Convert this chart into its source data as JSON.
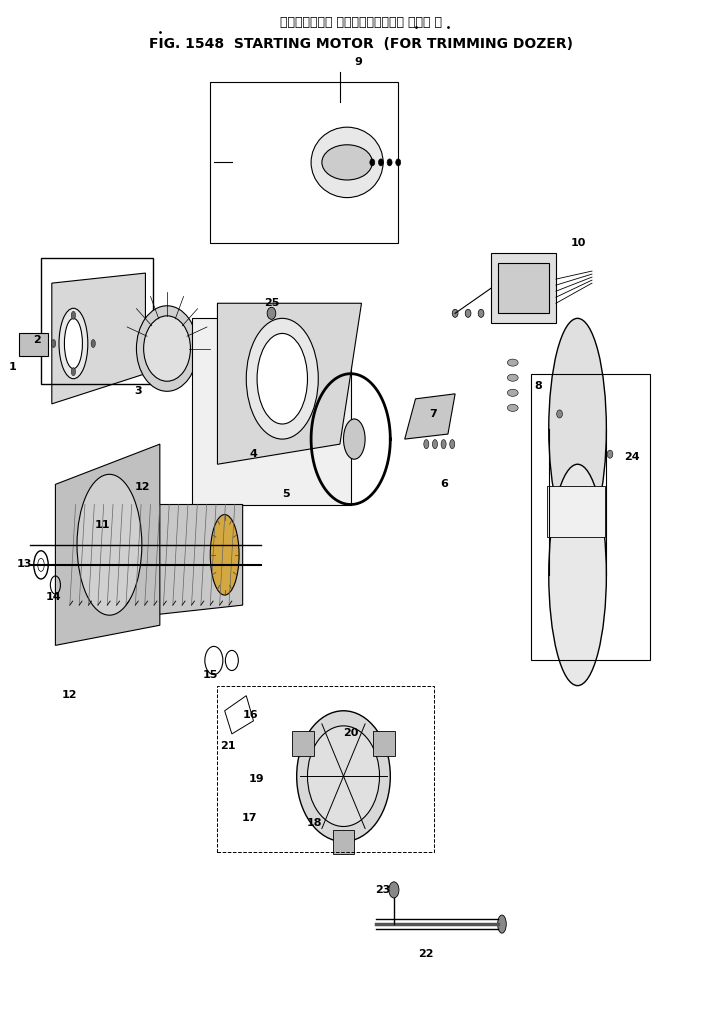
{
  "title_jp": "スターティング モータ　トリミング ドーザ 用",
  "title_en": "FIG. 1548  STARTING MOTOR  (FOR TRIMMING DOZER)",
  "bg_color": "#ffffff",
  "fig_width": 7.23,
  "fig_height": 10.09
}
